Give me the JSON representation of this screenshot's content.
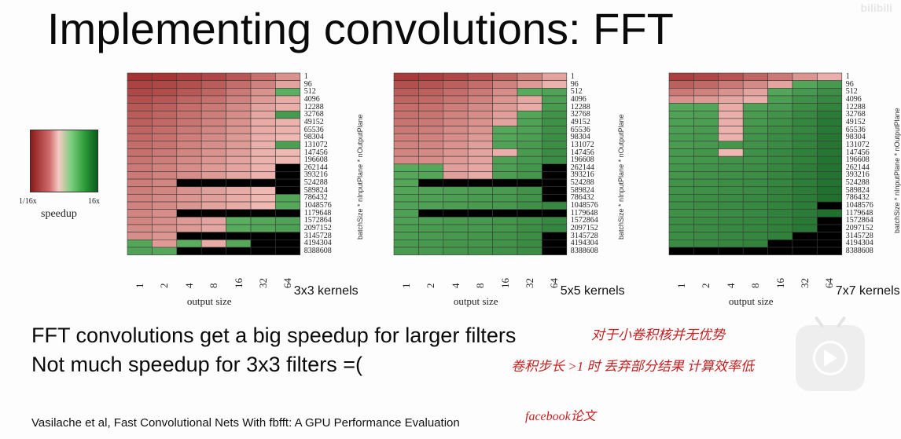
{
  "slide": {
    "title": "Implementing convolutions: FFT",
    "body_line1": "FFT convolutions get a big speedup for larger filters",
    "body_line2": "Not much speedup for 3x3 filters =(",
    "citation": "Vasilache et al, Fast Convolutional Nets With fbfft: A GPU Performance Evaluation",
    "annotation1": "对于小卷积核并无优势",
    "annotation2": "卷积步长 >1 时 丢弃部分结果 计算效率低",
    "annotation3": "facebook论文",
    "watermark": "bilibili"
  },
  "legend": {
    "low_label": "1/16x",
    "high_label": "16x",
    "title": "speedup",
    "colors": [
      "#8b1a1a",
      "#f6c9c4",
      "#0b5b1a"
    ]
  },
  "chart_data": [
    {
      "type": "heatmap",
      "title": "3x3 kernels",
      "xlabel": "output size",
      "ylabel": "batchSize * nInputPlane * nOutputPlane",
      "x": [
        "1",
        "2",
        "4",
        "8",
        "16",
        "32",
        "64"
      ],
      "y": [
        "1",
        "96",
        "512",
        "4096",
        "12288",
        "32768",
        "49152",
        "65536",
        "98304",
        "131072",
        "147456",
        "196608",
        "262144",
        "393216",
        "524288",
        "589824",
        "786432",
        "1048576",
        "1179648",
        "1572864",
        "2097152",
        "3145728",
        "4194304",
        "8388608"
      ],
      "value_scale": "log2 speedup from -4 (1/16x) to 4 (16x); null = not measured (black)",
      "values": [
        [
          -3.5,
          -3.4,
          -3.2,
          -3.0,
          -2.6,
          -2.0,
          -1.2
        ],
        [
          -3.1,
          -3.0,
          -2.8,
          -2.5,
          -2.1,
          -1.6,
          -0.8
        ],
        [
          -3.0,
          -2.9,
          -2.6,
          -2.3,
          -1.8,
          -1.2,
          1.2
        ],
        [
          -2.8,
          -2.6,
          -2.3,
          -2.0,
          -1.6,
          -1.0,
          -0.6
        ],
        [
          -2.6,
          -2.4,
          -2.1,
          -1.8,
          -1.4,
          -0.8,
          -0.5
        ],
        [
          -2.5,
          -2.3,
          -2.0,
          -1.7,
          -1.3,
          -0.7,
          2.0
        ],
        [
          -2.4,
          -2.2,
          -1.9,
          -1.6,
          -1.2,
          -0.6,
          -0.4
        ],
        [
          -2.3,
          -2.1,
          -1.8,
          -1.5,
          -1.1,
          -0.6,
          -0.4
        ],
        [
          -2.2,
          -2.0,
          -1.7,
          -1.4,
          -1.0,
          -0.5,
          -0.3
        ],
        [
          -2.1,
          -1.9,
          -1.6,
          -1.3,
          -1.0,
          -0.5,
          1.8
        ],
        [
          -2.0,
          -1.8,
          -1.5,
          -1.2,
          -0.9,
          -0.4,
          -0.3
        ],
        [
          -1.9,
          -1.7,
          -1.4,
          -1.1,
          -0.8,
          -0.4,
          -0.3
        ],
        [
          -1.8,
          -1.6,
          -1.3,
          -1.0,
          -0.8,
          -0.4,
          null
        ],
        [
          -1.8,
          -1.6,
          -1.3,
          -1.0,
          -0.7,
          -0.4,
          null
        ],
        [
          -1.7,
          -1.5,
          null,
          null,
          null,
          null,
          null
        ],
        [
          -1.7,
          -1.5,
          -1.2,
          -0.9,
          -0.6,
          -0.3,
          null
        ],
        [
          -1.6,
          -1.4,
          -1.1,
          -0.9,
          -0.6,
          -0.3,
          1.5
        ],
        [
          -1.6,
          -1.4,
          -1.1,
          -0.8,
          -0.6,
          -0.3,
          1.4
        ],
        [
          -1.5,
          -1.3,
          null,
          null,
          null,
          null,
          null
        ],
        [
          -1.5,
          -1.3,
          -1.0,
          -0.8,
          1.2,
          1.4,
          1.6
        ],
        [
          -1.4,
          -1.2,
          -1.0,
          -0.7,
          1.3,
          1.5,
          1.7
        ],
        [
          -1.3,
          -1.1,
          null,
          null,
          null,
          null,
          null
        ],
        [
          1.5,
          -1.0,
          1.2,
          -0.6,
          1.4,
          null,
          null
        ],
        [
          1.6,
          1.4,
          null,
          null,
          null,
          null,
          null
        ]
      ]
    },
    {
      "type": "heatmap",
      "title": "5x5 kernels",
      "xlabel": "output size",
      "ylabel": "batchSize * nInputPlane * nOutputPlane",
      "x": [
        "1",
        "2",
        "4",
        "8",
        "16",
        "32",
        "64"
      ],
      "y": [
        "1",
        "96",
        "512",
        "4096",
        "12288",
        "32768",
        "49152",
        "65536",
        "98304",
        "131072",
        "147456",
        "196608",
        "262144",
        "393216",
        "524288",
        "589824",
        "786432",
        "1048576",
        "1179648",
        "1572864",
        "2097152",
        "3145728",
        "4194304",
        "8388608"
      ],
      "value_scale": "log2 speedup from -4 (1/16x) to 4 (16x); null = not measured (black)",
      "values": [
        [
          -3.3,
          -3.2,
          -3.0,
          -2.7,
          -2.3,
          -1.6,
          -0.8
        ],
        [
          -2.8,
          -2.7,
          -2.4,
          -2.1,
          -1.6,
          -1.0,
          -0.4
        ],
        [
          -2.5,
          -2.4,
          -2.1,
          -1.8,
          -1.3,
          1.3,
          1.6
        ],
        [
          -2.3,
          -2.2,
          -1.9,
          -1.6,
          -1.1,
          -0.7,
          1.8
        ],
        [
          -2.1,
          -2.0,
          -1.7,
          -1.4,
          -1.0,
          -0.6,
          1.9
        ],
        [
          -2.0,
          -1.9,
          -1.6,
          -1.3,
          -0.9,
          1.5,
          2.2
        ],
        [
          -1.9,
          -1.8,
          -1.5,
          -1.2,
          -0.8,
          1.6,
          2.3
        ],
        [
          -1.8,
          -1.7,
          -1.4,
          -1.1,
          1.4,
          1.7,
          2.3
        ],
        [
          -1.7,
          -1.6,
          -1.3,
          -1.0,
          1.5,
          1.8,
          2.4
        ],
        [
          -1.6,
          -1.5,
          -1.2,
          -0.9,
          1.6,
          1.9,
          2.4
        ],
        [
          -1.5,
          -1.4,
          -1.1,
          -0.8,
          -0.5,
          1.9,
          2.5
        ],
        [
          -1.4,
          -1.3,
          -1.0,
          -0.8,
          1.7,
          2.0,
          2.5
        ],
        [
          1.3,
          1.4,
          -0.9,
          -0.7,
          1.8,
          2.1,
          null
        ],
        [
          1.4,
          1.5,
          -0.9,
          -0.6,
          1.8,
          2.1,
          null
        ],
        [
          1.5,
          null,
          null,
          null,
          null,
          null,
          null
        ],
        [
          1.5,
          1.6,
          1.7,
          1.8,
          1.9,
          2.2,
          null
        ],
        [
          1.6,
          1.7,
          1.8,
          1.9,
          2.0,
          2.2,
          null
        ],
        [
          1.6,
          1.7,
          1.8,
          1.9,
          2.0,
          2.3,
          2.6
        ],
        [
          1.7,
          null,
          null,
          null,
          null,
          null,
          null
        ],
        [
          1.7,
          1.8,
          1.9,
          2.0,
          2.1,
          2.3,
          2.6
        ],
        [
          1.8,
          1.9,
          2.0,
          2.0,
          2.1,
          2.4,
          2.7
        ],
        [
          1.8,
          1.9,
          2.0,
          2.1,
          2.2,
          2.4,
          null
        ],
        [
          1.9,
          2.0,
          2.1,
          2.1,
          2.2,
          2.5,
          null
        ],
        [
          1.9,
          2.0,
          2.1,
          2.2,
          2.3,
          2.5,
          null
        ]
      ]
    },
    {
      "type": "heatmap",
      "title": "7x7 kernels",
      "xlabel": "output size",
      "ylabel": "batchSize * nInputPlane * nOutputPlane",
      "x": [
        "1",
        "2",
        "4",
        "8",
        "16",
        "32",
        "64"
      ],
      "y": [
        "1",
        "96",
        "512",
        "4096",
        "12288",
        "32768",
        "49152",
        "65536",
        "98304",
        "131072",
        "147456",
        "196608",
        "262144",
        "393216",
        "524288",
        "589824",
        "786432",
        "1048576",
        "1179648",
        "1572864",
        "2097152",
        "3145728",
        "4194304",
        "8388608"
      ],
      "value_scale": "log2 speedup from -4 (1/16x) to 4 (16x); null = not measured (black)",
      "values": [
        [
          -3.2,
          -3.0,
          -2.7,
          -2.3,
          -1.8,
          -1.1,
          -0.5
        ],
        [
          -2.4,
          -2.2,
          -1.8,
          -1.4,
          -0.8,
          1.5,
          2.0
        ],
        [
          -1.8,
          -1.6,
          -1.2,
          -0.8,
          1.5,
          2.0,
          2.4
        ],
        [
          -1.2,
          -1.0,
          -0.7,
          -0.5,
          1.8,
          2.3,
          2.6
        ],
        [
          1.4,
          1.5,
          -0.6,
          1.7,
          2.0,
          2.4,
          2.8
        ],
        [
          1.6,
          1.7,
          -0.5,
          1.9,
          2.2,
          2.6,
          3.1
        ],
        [
          1.7,
          1.8,
          -0.5,
          2.0,
          2.3,
          2.7,
          3.2
        ],
        [
          1.8,
          1.9,
          -0.4,
          2.1,
          2.4,
          2.7,
          3.2
        ],
        [
          1.9,
          2.0,
          -0.4,
          2.2,
          2.5,
          2.8,
          3.3
        ],
        [
          1.9,
          2.0,
          2.1,
          2.2,
          2.5,
          2.8,
          3.3
        ],
        [
          2.0,
          2.1,
          -0.3,
          2.3,
          2.6,
          2.9,
          3.3
        ],
        [
          2.0,
          2.1,
          2.2,
          2.3,
          2.6,
          2.9,
          3.4
        ],
        [
          2.1,
          2.2,
          2.3,
          2.4,
          2.7,
          3.0,
          3.4
        ],
        [
          2.1,
          2.2,
          2.3,
          2.4,
          2.7,
          3.0,
          3.4
        ],
        [
          2.2,
          2.3,
          2.4,
          2.5,
          2.7,
          3.0,
          3.4
        ],
        [
          2.2,
          2.3,
          2.4,
          2.5,
          2.8,
          3.1,
          3.5
        ],
        [
          2.3,
          2.4,
          2.5,
          2.6,
          2.8,
          3.1,
          3.5
        ],
        [
          2.3,
          2.4,
          2.5,
          2.6,
          2.8,
          3.1,
          null
        ],
        [
          2.3,
          2.4,
          2.5,
          2.6,
          2.9,
          3.1,
          3.5
        ],
        [
          2.4,
          2.5,
          2.6,
          2.7,
          2.9,
          3.2,
          null
        ],
        [
          2.4,
          2.5,
          2.6,
          2.7,
          2.9,
          3.2,
          null
        ],
        [
          2.4,
          2.5,
          2.6,
          2.7,
          2.9,
          null,
          null
        ],
        [
          2.5,
          2.6,
          2.7,
          2.8,
          null,
          null,
          null
        ],
        [
          null,
          null,
          null,
          null,
          null,
          null,
          null
        ]
      ]
    }
  ]
}
